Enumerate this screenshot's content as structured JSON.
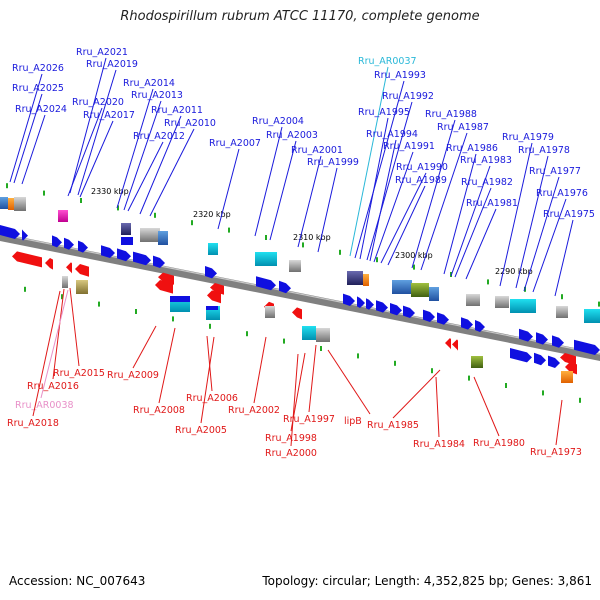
{
  "title": "Rhodospirillum rubrum ATCC 11170, complete genome",
  "footer": {
    "accession": "Accession: NC_007643",
    "topology": "Topology: circular; Length: 4,352,825 bp; Genes: 3,861"
  },
  "colors": {
    "forward_label": "#1a1adc",
    "reverse_label": "#e01818",
    "forward_rna_label": "#2ab8d8",
    "reverse_rna_label": "#e890c8",
    "forward_gene": "#1010e0",
    "reverse_gene": "#f01010",
    "axis": "#808080",
    "tick": "#22aa22"
  },
  "ticks": [
    "2330 kbp",
    "2320 kbp",
    "2310 kbp",
    "2300 kbp",
    "2290 kbp"
  ],
  "forward_labels": [
    "Rru_A2026",
    "Rru_A2025",
    "Rru_A2024",
    "Rru_A2021",
    "Rru_A2019",
    "Rru_A2020",
    "Rru_A2017",
    "Rru_A2014",
    "Rru_A2013",
    "Rru_A2012",
    "Rru_A2011",
    "Rru_A2010",
    "Rru_A2007",
    "Rru_A2004",
    "Rru_A2003",
    "Rru_A2001",
    "Rru_A1999",
    "Rru_AR0037",
    "Rru_A1993",
    "Rru_A1995",
    "Rru_A1992",
    "Rru_A1994",
    "Rru_A1991",
    "Rru_A1990",
    "Rru_A1989",
    "Rru_A1988",
    "Rru_A1987",
    "Rru_A1986",
    "Rru_A1983",
    "Rru_A1982",
    "Rru_A1981",
    "Rru_A1979",
    "Rru_A1978",
    "Rru_A1977",
    "Rru_A1976",
    "Rru_A1975"
  ],
  "reverse_labels": [
    "Rru_A2015",
    "Rru_A2016",
    "Rru_AR0038",
    "Rru_A2018",
    "Rru_A2009",
    "Rru_A2008",
    "Rru_A2006",
    "Rru_A2005",
    "Rru_A2002",
    "Rru_A1997",
    "Rru_A1998",
    "Rru_A2000",
    "lipB",
    "Rru_A1985",
    "Rru_A1984",
    "Rru_A1980",
    "Rru_A1973"
  ]
}
